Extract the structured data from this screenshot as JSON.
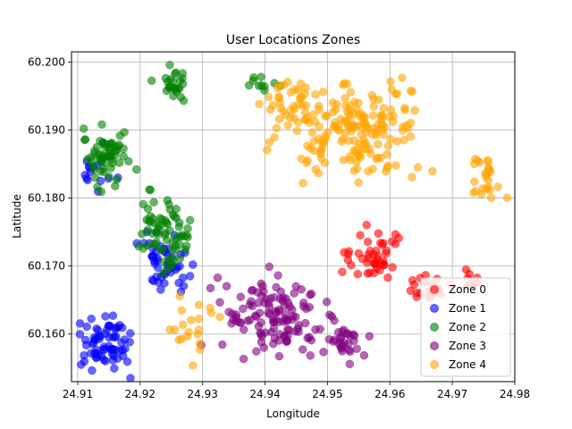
{
  "chart_data": {
    "type": "scatter",
    "title": "User Locations Zones",
    "xlabel": "Longitude",
    "ylabel": "Latitude",
    "xlim": [
      24.909,
      24.98
    ],
    "ylim": [
      60.153,
      60.2015
    ],
    "xticks": [
      24.91,
      24.92,
      24.93,
      24.94,
      24.95,
      24.96,
      24.97,
      24.98
    ],
    "xtick_labels": [
      "24.91",
      "24.92",
      "24.93",
      "24.94",
      "24.95",
      "24.96",
      "24.97",
      "24.98"
    ],
    "yticks": [
      60.16,
      60.17,
      60.18,
      60.19,
      60.2
    ],
    "ytick_labels": [
      "60.160",
      "60.170",
      "60.180",
      "60.190",
      "60.200"
    ],
    "grid": true,
    "legend_position": "lower-right",
    "marker_alpha": 0.6,
    "series": [
      {
        "name": "Zone 0",
        "color": "#ff0000",
        "clusters": [
          {
            "center": [
              24.957,
              60.1715
            ],
            "spread": [
              0.0045,
              0.0035
            ],
            "n": 45
          },
          {
            "center": [
              24.966,
              60.1665
            ],
            "spread": [
              0.003,
              0.0015
            ],
            "n": 25
          },
          {
            "center": [
              24.973,
              60.1675
            ],
            "spread": [
              0.0015,
              0.0012
            ],
            "n": 10
          }
        ]
      },
      {
        "name": "Zone 1",
        "color": "#0000ff",
        "clusters": [
          {
            "center": [
              24.9145,
              60.159
            ],
            "spread": [
              0.0035,
              0.0035
            ],
            "n": 70
          },
          {
            "center": [
              24.924,
              60.1705
            ],
            "spread": [
              0.0035,
              0.004
            ],
            "n": 50
          },
          {
            "center": [
              24.913,
              60.1835
            ],
            "spread": [
              0.0025,
              0.0025
            ],
            "n": 15
          }
        ]
      },
      {
        "name": "Zone 2",
        "color": "#008000",
        "clusters": [
          {
            "center": [
              24.9145,
              60.1865
            ],
            "spread": [
              0.003,
              0.0035
            ],
            "n": 60
          },
          {
            "center": [
              24.924,
              60.1755
            ],
            "spread": [
              0.0035,
              0.0045
            ],
            "n": 70
          },
          {
            "center": [
              24.925,
              60.197
            ],
            "spread": [
              0.002,
              0.0025
            ],
            "n": 25
          },
          {
            "center": [
              24.939,
              60.1975
            ],
            "spread": [
              0.0025,
              0.0015
            ],
            "n": 10
          }
        ]
      },
      {
        "name": "Zone 3",
        "color": "#800080",
        "clusters": [
          {
            "center": [
              24.9415,
              60.1625
            ],
            "spread": [
              0.0075,
              0.0045
            ],
            "n": 120
          },
          {
            "center": [
              24.9525,
              60.159
            ],
            "spread": [
              0.0035,
              0.0025
            ],
            "n": 30
          }
        ]
      },
      {
        "name": "Zone 4",
        "color": "#ffa500",
        "clusters": [
          {
            "center": [
              24.9555,
              60.1895
            ],
            "spread": [
              0.0095,
              0.0055
            ],
            "n": 170
          },
          {
            "center": [
              24.9435,
              60.194
            ],
            "spread": [
              0.0035,
              0.0035
            ],
            "n": 40
          },
          {
            "center": [
              24.9755,
              60.183
            ],
            "spread": [
              0.0025,
              0.003
            ],
            "n": 25
          },
          {
            "center": [
              24.9285,
              60.1605
            ],
            "spread": [
              0.003,
              0.003
            ],
            "n": 20
          }
        ]
      }
    ]
  }
}
